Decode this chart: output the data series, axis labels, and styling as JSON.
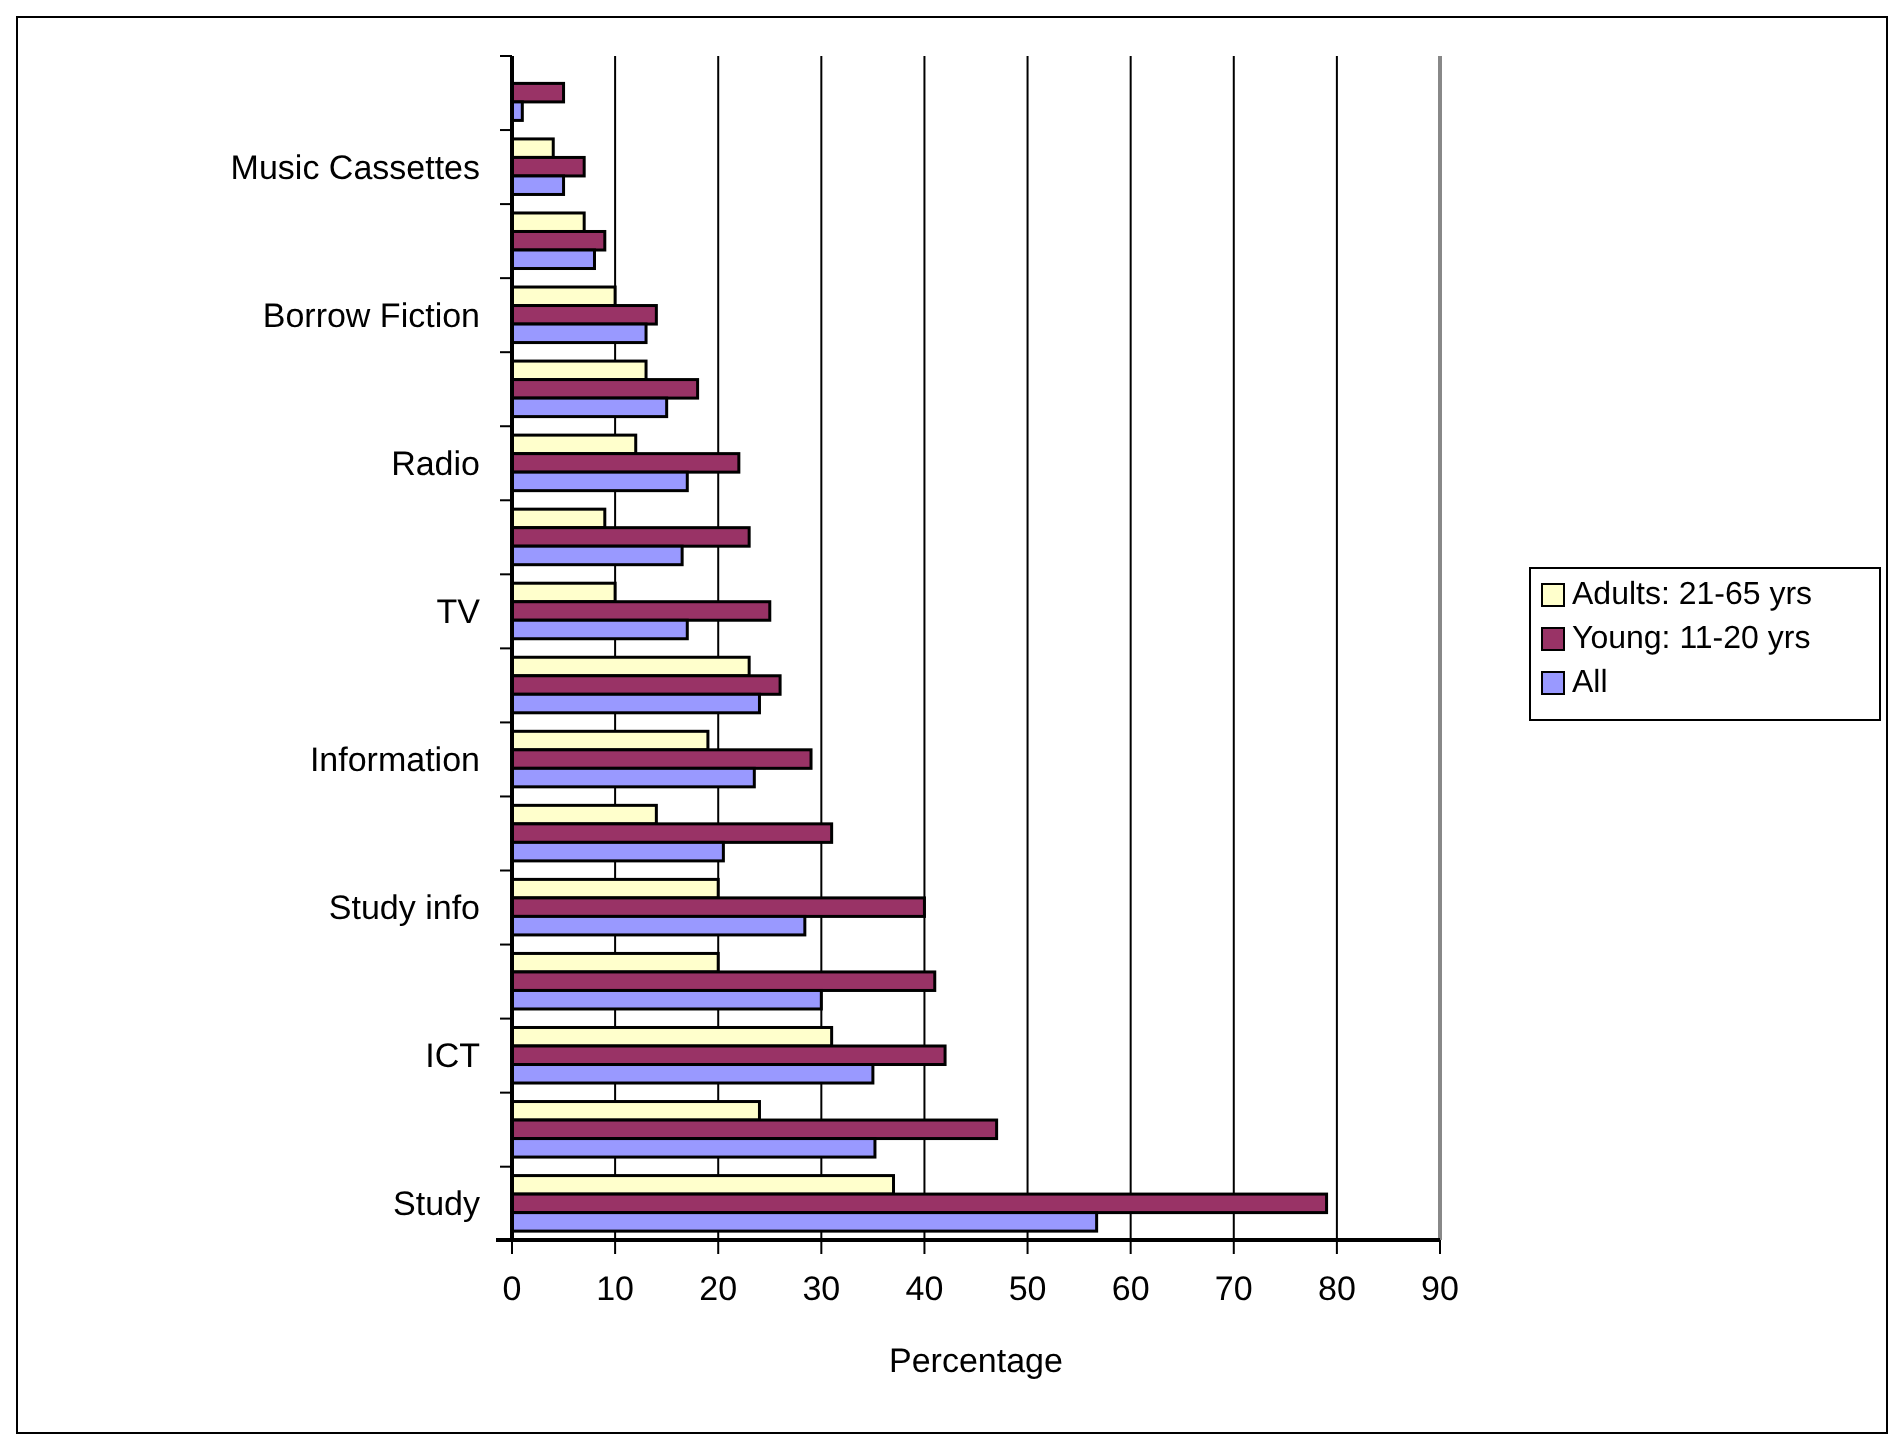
{
  "chart_data": {
    "type": "bar",
    "orientation": "horizontal",
    "xlabel": "Percentage",
    "categories": [
      null,
      "Music Cassettes",
      null,
      "Borrow Fiction",
      null,
      "Radio",
      null,
      "TV",
      null,
      "Information",
      null,
      "Study info",
      null,
      "ICT",
      null,
      "Study"
    ],
    "series": [
      {
        "name": "Adults: 21-65 yrs",
        "color": "#ffffcc",
        "values": [
          null,
          4,
          7,
          10,
          13,
          12,
          9,
          10,
          23,
          19,
          14,
          20,
          20,
          31,
          24,
          37
        ]
      },
      {
        "name": "Young: 11-20 yrs",
        "color": "#993366",
        "values": [
          5,
          7,
          9,
          14,
          18,
          22,
          23,
          25,
          26,
          29,
          31,
          40,
          41,
          42,
          47,
          79
        ]
      },
      {
        "name": "All",
        "color": "#9999ff",
        "values": [
          1,
          5,
          8,
          13,
          15,
          17,
          16.5,
          17,
          24,
          23.5,
          20.5,
          28.4,
          30,
          35,
          35.2,
          56.7
        ]
      }
    ],
    "xlim": [
      0,
      90
    ],
    "xticks": [
      0,
      10,
      20,
      30,
      40,
      50,
      60,
      70,
      80,
      90
    ],
    "grid": "x",
    "legend": "right"
  }
}
